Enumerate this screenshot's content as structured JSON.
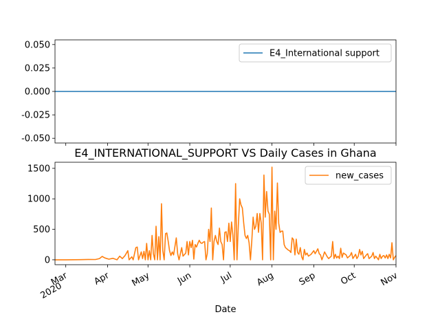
{
  "chart_data": [
    {
      "type": "line",
      "title": "",
      "xlabel": "",
      "ylabel": "",
      "ylim": [
        -0.055,
        0.055
      ],
      "yticks": [
        "-0.050",
        "-0.025",
        "0.000",
        "0.025",
        "0.050"
      ],
      "ytick_values": [
        -0.05,
        -0.025,
        0,
        0.025,
        0.05
      ],
      "legend_position": "top-right",
      "series": [
        {
          "name": "E4_International support",
          "color": "#1f77b4",
          "x_range": [
            "2020-02-22",
            "2020-11-01"
          ],
          "constant_value": 0
        }
      ]
    },
    {
      "type": "line",
      "title": "E4_INTERNATIONAL_SUPPORT VS Daily Cases in Ghana",
      "xlabel": "Date",
      "ylabel": "",
      "ylim": [
        -80,
        1600
      ],
      "yticks": [
        "0",
        "500",
        "1000",
        "1500"
      ],
      "ytick_values": [
        0,
        500,
        1000,
        1500
      ],
      "xlim": [
        "2020-02-22",
        "2020-11-01"
      ],
      "xticks": [
        {
          "date": "2020-03-01",
          "label": "Mar",
          "sub": "2020"
        },
        {
          "date": "2020-04-01",
          "label": "Apr",
          "sub": ""
        },
        {
          "date": "2020-05-01",
          "label": "May",
          "sub": ""
        },
        {
          "date": "2020-06-01",
          "label": "Jun",
          "sub": ""
        },
        {
          "date": "2020-07-01",
          "label": "Jul",
          "sub": ""
        },
        {
          "date": "2020-08-01",
          "label": "Aug",
          "sub": ""
        },
        {
          "date": "2020-09-01",
          "label": "Sep",
          "sub": ""
        },
        {
          "date": "2020-10-01",
          "label": "Oct",
          "sub": ""
        },
        {
          "date": "2020-11-01",
          "label": "Nov",
          "sub": ""
        }
      ],
      "legend_position": "top-right",
      "series": [
        {
          "name": "new_cases",
          "color": "#ff7f0e",
          "points": [
            [
              "2020-02-22",
              0
            ],
            [
              "2020-03-01",
              0
            ],
            [
              "2020-03-12",
              2
            ],
            [
              "2020-03-18",
              6
            ],
            [
              "2020-03-23",
              5
            ],
            [
              "2020-03-26",
              20
            ],
            [
              "2020-03-28",
              55
            ],
            [
              "2020-03-30",
              30
            ],
            [
              "2020-04-02",
              10
            ],
            [
              "2020-04-05",
              25
            ],
            [
              "2020-04-08",
              0
            ],
            [
              "2020-04-10",
              60
            ],
            [
              "2020-04-12",
              20
            ],
            [
              "2020-04-14",
              70
            ],
            [
              "2020-04-16",
              150
            ],
            [
              "2020-04-17",
              0
            ],
            [
              "2020-04-19",
              50
            ],
            [
              "2020-04-20",
              0
            ],
            [
              "2020-04-22",
              200
            ],
            [
              "2020-04-23",
              210
            ],
            [
              "2020-04-24",
              0
            ],
            [
              "2020-04-26",
              130
            ],
            [
              "2020-04-27",
              20
            ],
            [
              "2020-04-28",
              140
            ],
            [
              "2020-04-29",
              0
            ],
            [
              "2020-04-30",
              270
            ],
            [
              "2020-05-01",
              0
            ],
            [
              "2020-05-02",
              150
            ],
            [
              "2020-05-03",
              0
            ],
            [
              "2020-05-04",
              400
            ],
            [
              "2020-05-05",
              100
            ],
            [
              "2020-05-06",
              0
            ],
            [
              "2020-05-07",
              550
            ],
            [
              "2020-05-08",
              0
            ],
            [
              "2020-05-09",
              380
            ],
            [
              "2020-05-10",
              0
            ],
            [
              "2020-05-11",
              920
            ],
            [
              "2020-05-12",
              150
            ],
            [
              "2020-05-13",
              0
            ],
            [
              "2020-05-14",
              430
            ],
            [
              "2020-05-15",
              440
            ],
            [
              "2020-05-16",
              300
            ],
            [
              "2020-05-17",
              150
            ],
            [
              "2020-05-18",
              70
            ],
            [
              "2020-05-19",
              130
            ],
            [
              "2020-05-20",
              80
            ],
            [
              "2020-05-22",
              360
            ],
            [
              "2020-05-23",
              100
            ],
            [
              "2020-05-24",
              0
            ],
            [
              "2020-05-26",
              200
            ],
            [
              "2020-05-27",
              60
            ],
            [
              "2020-05-29",
              110
            ],
            [
              "2020-05-30",
              300
            ],
            [
              "2020-05-31",
              80
            ],
            [
              "2020-06-01",
              300
            ],
            [
              "2020-06-02",
              200
            ],
            [
              "2020-06-03",
              320
            ],
            [
              "2020-06-04",
              10
            ],
            [
              "2020-06-05",
              250
            ],
            [
              "2020-06-06",
              210
            ],
            [
              "2020-06-07",
              270
            ],
            [
              "2020-06-08",
              320
            ],
            [
              "2020-06-09",
              280
            ],
            [
              "2020-06-10",
              270
            ],
            [
              "2020-06-11",
              290
            ],
            [
              "2020-06-12",
              300
            ],
            [
              "2020-06-13",
              0
            ],
            [
              "2020-06-14",
              100
            ],
            [
              "2020-06-15",
              500
            ],
            [
              "2020-06-16",
              300
            ],
            [
              "2020-06-17",
              850
            ],
            [
              "2020-06-18",
              0
            ],
            [
              "2020-06-19",
              300
            ],
            [
              "2020-06-20",
              400
            ],
            [
              "2020-06-21",
              300
            ],
            [
              "2020-06-22",
              250
            ],
            [
              "2020-06-23",
              520
            ],
            [
              "2020-06-24",
              300
            ],
            [
              "2020-06-25",
              250
            ],
            [
              "2020-06-26",
              0
            ],
            [
              "2020-06-27",
              450
            ],
            [
              "2020-06-28",
              460
            ],
            [
              "2020-06-29",
              300
            ],
            [
              "2020-06-30",
              600
            ],
            [
              "2020-07-01",
              300
            ],
            [
              "2020-07-02",
              620
            ],
            [
              "2020-07-03",
              400
            ],
            [
              "2020-07-04",
              0
            ],
            [
              "2020-07-05",
              1250
            ],
            [
              "2020-07-06",
              0
            ],
            [
              "2020-07-07",
              550
            ],
            [
              "2020-07-08",
              1000
            ],
            [
              "2020-07-09",
              900
            ],
            [
              "2020-07-10",
              850
            ],
            [
              "2020-07-11",
              600
            ],
            [
              "2020-07-12",
              400
            ],
            [
              "2020-07-13",
              350
            ],
            [
              "2020-07-14",
              400
            ],
            [
              "2020-07-15",
              280
            ],
            [
              "2020-07-16",
              0
            ],
            [
              "2020-07-17",
              300
            ],
            [
              "2020-07-18",
              700
            ],
            [
              "2020-07-19",
              500
            ],
            [
              "2020-07-20",
              550
            ],
            [
              "2020-07-21",
              760
            ],
            [
              "2020-07-22",
              450
            ],
            [
              "2020-07-23",
              760
            ],
            [
              "2020-07-24",
              600
            ],
            [
              "2020-07-25",
              0
            ],
            [
              "2020-07-26",
              1390
            ],
            [
              "2020-07-27",
              700
            ],
            [
              "2020-07-28",
              1120
            ],
            [
              "2020-07-29",
              800
            ],
            [
              "2020-07-30",
              750
            ],
            [
              "2020-07-31",
              0
            ],
            [
              "2020-08-01",
              1520
            ],
            [
              "2020-08-02",
              0
            ],
            [
              "2020-08-03",
              800
            ],
            [
              "2020-08-04",
              500
            ],
            [
              "2020-08-05",
              1260
            ],
            [
              "2020-08-06",
              600
            ],
            [
              "2020-08-07",
              450
            ],
            [
              "2020-08-08",
              470
            ],
            [
              "2020-08-09",
              470
            ],
            [
              "2020-08-10",
              250
            ],
            [
              "2020-08-11",
              200
            ],
            [
              "2020-08-12",
              180
            ],
            [
              "2020-08-13",
              160
            ],
            [
              "2020-08-14",
              150
            ],
            [
              "2020-08-15",
              120
            ],
            [
              "2020-08-16",
              360
            ],
            [
              "2020-08-17",
              330
            ],
            [
              "2020-08-18",
              80
            ],
            [
              "2020-08-19",
              340
            ],
            [
              "2020-08-20",
              120
            ],
            [
              "2020-08-21",
              90
            ],
            [
              "2020-08-22",
              200
            ],
            [
              "2020-08-23",
              50
            ],
            [
              "2020-08-24",
              0
            ],
            [
              "2020-08-25",
              170
            ],
            [
              "2020-08-26",
              80
            ],
            [
              "2020-08-27",
              110
            ],
            [
              "2020-08-28",
              60
            ],
            [
              "2020-08-30",
              90
            ],
            [
              "2020-09-01",
              150
            ],
            [
              "2020-09-02",
              100
            ],
            [
              "2020-09-04",
              180
            ],
            [
              "2020-09-05",
              100
            ],
            [
              "2020-09-06",
              80
            ],
            [
              "2020-09-07",
              0
            ],
            [
              "2020-09-08",
              60
            ],
            [
              "2020-09-09",
              130
            ],
            [
              "2020-09-11",
              50
            ],
            [
              "2020-09-12",
              20
            ],
            [
              "2020-09-14",
              60
            ],
            [
              "2020-09-15",
              300
            ],
            [
              "2020-09-16",
              20
            ],
            [
              "2020-09-17",
              90
            ],
            [
              "2020-09-18",
              30
            ],
            [
              "2020-09-19",
              60
            ],
            [
              "2020-09-20",
              20
            ],
            [
              "2020-09-21",
              190
            ],
            [
              "2020-09-22",
              40
            ],
            [
              "2020-09-23",
              110
            ],
            [
              "2020-09-25",
              80
            ],
            [
              "2020-09-26",
              30
            ],
            [
              "2020-09-28",
              70
            ],
            [
              "2020-09-29",
              120
            ],
            [
              "2020-09-30",
              20
            ],
            [
              "2020-10-02",
              90
            ],
            [
              "2020-10-03",
              20
            ],
            [
              "2020-10-04",
              60
            ],
            [
              "2020-10-05",
              170
            ],
            [
              "2020-10-06",
              80
            ],
            [
              "2020-10-07",
              140
            ],
            [
              "2020-10-08",
              20
            ],
            [
              "2020-10-10",
              80
            ],
            [
              "2020-10-11",
              100
            ],
            [
              "2020-10-12",
              20
            ],
            [
              "2020-10-14",
              60
            ],
            [
              "2020-10-15",
              120
            ],
            [
              "2020-10-16",
              20
            ],
            [
              "2020-10-17",
              60
            ],
            [
              "2020-10-18",
              30
            ],
            [
              "2020-10-19",
              0
            ],
            [
              "2020-10-20",
              90
            ],
            [
              "2020-10-21",
              20
            ],
            [
              "2020-10-22",
              60
            ],
            [
              "2020-10-23",
              70
            ],
            [
              "2020-10-24",
              30
            ],
            [
              "2020-10-25",
              80
            ],
            [
              "2020-10-26",
              20
            ],
            [
              "2020-10-27",
              90
            ],
            [
              "2020-10-28",
              30
            ],
            [
              "2020-10-29",
              280
            ],
            [
              "2020-10-30",
              0
            ],
            [
              "2020-10-31",
              40
            ],
            [
              "2020-11-01",
              70
            ]
          ]
        }
      ]
    }
  ]
}
